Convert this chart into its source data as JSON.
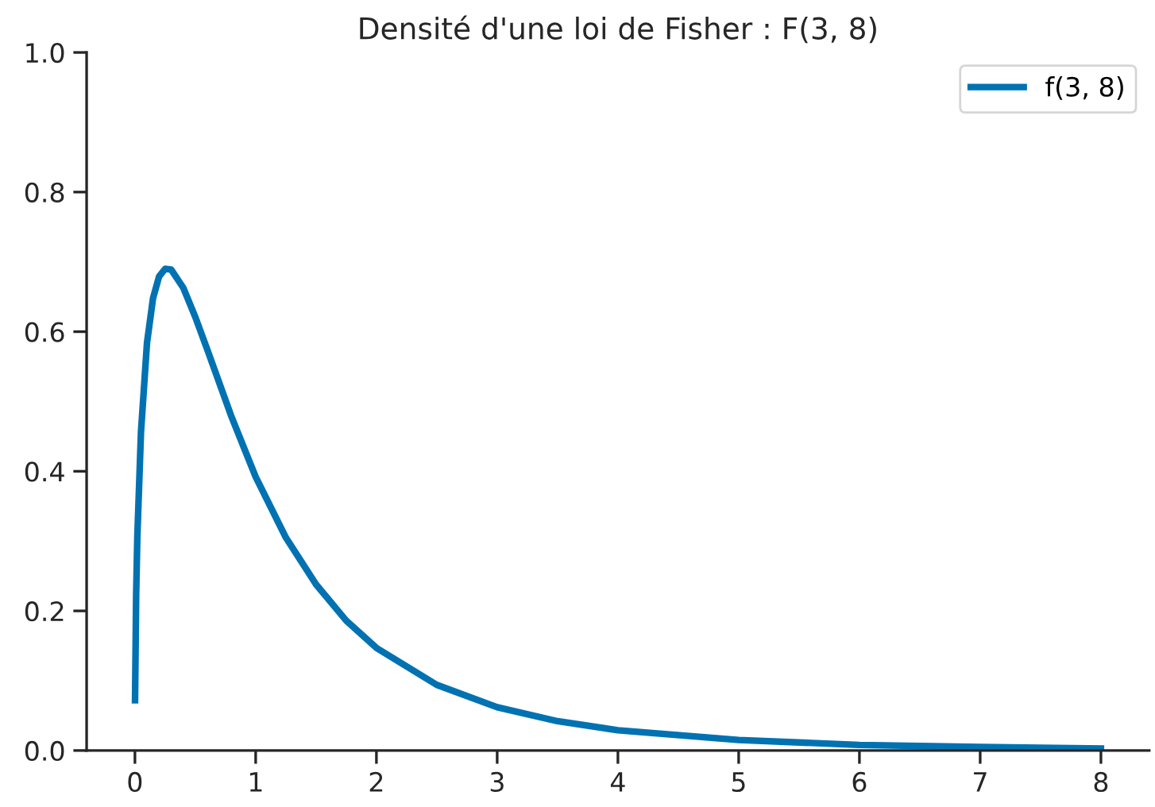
{
  "chart_data": {
    "type": "line",
    "title": "Densité d'une loi de Fisher : F(3, 8)",
    "x": [
      0.001,
      0.01,
      0.02,
      0.05,
      0.1,
      0.15,
      0.2,
      0.25,
      0.3,
      0.4,
      0.5,
      0.6,
      0.8,
      1.0,
      1.25,
      1.5,
      1.75,
      2.0,
      2.5,
      3.0,
      3.5,
      4.0,
      5.0,
      6.0,
      7.0,
      8.0
    ],
    "series": [
      {
        "name": "f(3, 8)",
        "color": "#0072b2",
        "values": [
          0.072,
          0.221,
          0.307,
          0.456,
          0.584,
          0.648,
          0.679,
          0.69,
          0.689,
          0.663,
          0.621,
          0.574,
          0.478,
          0.392,
          0.305,
          0.238,
          0.186,
          0.147,
          0.094,
          0.062,
          0.042,
          0.029,
          0.015,
          0.008,
          0.005,
          0.003
        ]
      }
    ],
    "xlim": [
      -0.4,
      8.4
    ],
    "xticks": [
      0,
      1,
      2,
      3,
      4,
      5,
      6,
      7,
      8
    ],
    "ylim": [
      0,
      1
    ],
    "yticks": [
      {
        "value": 0,
        "label": "0.0"
      },
      {
        "value": 0.2,
        "label": "0.2"
      },
      {
        "value": 0.4,
        "label": "0.4"
      },
      {
        "value": 0.6,
        "label": "0.6"
      },
      {
        "value": 0.8,
        "label": "0.8"
      },
      {
        "value": 1,
        "label": "1.0"
      }
    ],
    "grid": false,
    "legend": "top right",
    "marker": "none",
    "line_style": "solid"
  }
}
